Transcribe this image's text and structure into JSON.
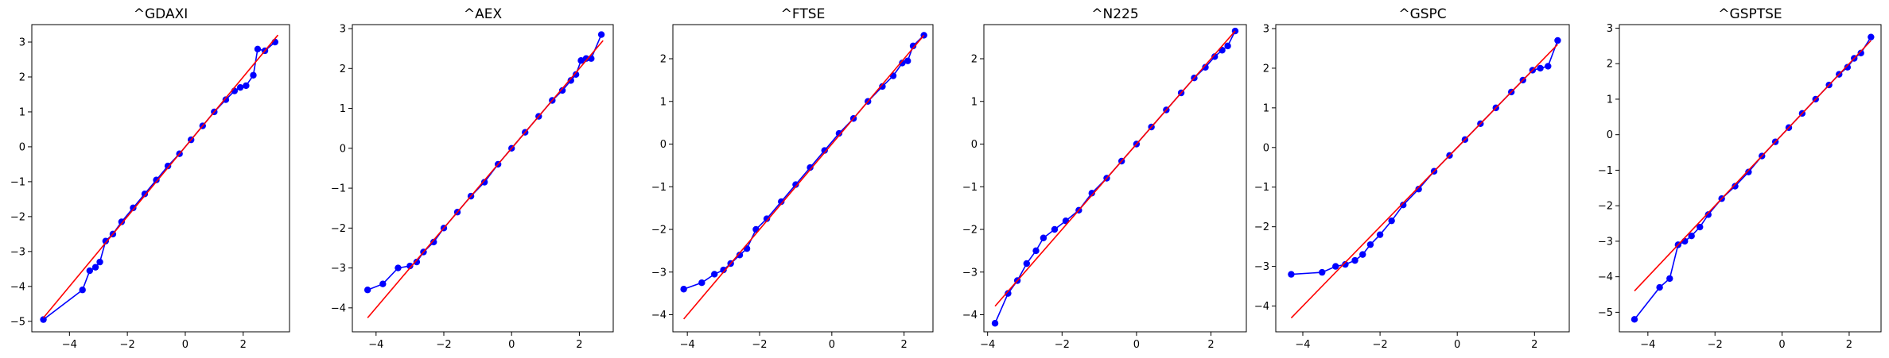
{
  "chart_data": [
    {
      "type": "line",
      "title": "^GDAXI",
      "xlim": [
        -5.3,
        3.6
      ],
      "ylim": [
        -5.3,
        3.5
      ],
      "xticks": [
        -4,
        -2,
        0,
        2
      ],
      "yticks": [
        -5,
        -4,
        -3,
        -2,
        -1,
        0,
        1,
        2,
        3
      ],
      "reference_line": {
        "x": [
          -4.9,
          3.2
        ],
        "y": [
          -4.9,
          3.2
        ],
        "color": "#ff0000"
      },
      "series": [
        {
          "color": "#0000ff",
          "marker": "o",
          "x": [
            -4.9,
            -3.55,
            -3.3,
            -3.1,
            -2.95,
            -2.75,
            -2.5,
            -2.2,
            -1.8,
            -1.4,
            -1.0,
            -0.6,
            -0.2,
            0.2,
            0.6,
            1.0,
            1.4,
            1.7,
            1.9,
            2.1,
            2.35,
            2.5,
            2.75,
            3.1
          ],
          "y": [
            -4.95,
            -4.1,
            -3.55,
            -3.45,
            -3.3,
            -2.7,
            -2.5,
            -2.15,
            -1.75,
            -1.35,
            -0.95,
            -0.55,
            -0.2,
            0.2,
            0.6,
            1.0,
            1.35,
            1.6,
            1.7,
            1.75,
            2.05,
            2.8,
            2.75,
            3.0
          ]
        }
      ]
    },
    {
      "type": "line",
      "title": "^AEX",
      "xlim": [
        -4.7,
        3.0
      ],
      "ylim": [
        -4.6,
        3.1
      ],
      "xticks": [
        -4,
        -2,
        0,
        2
      ],
      "yticks": [
        -4,
        -3,
        -2,
        -1,
        0,
        1,
        2,
        3
      ],
      "reference_line": {
        "x": [
          -4.25,
          2.7
        ],
        "y": [
          -4.25,
          2.7
        ],
        "color": "#ff0000"
      },
      "series": [
        {
          "color": "#0000ff",
          "marker": "o",
          "x": [
            -4.25,
            -3.8,
            -3.35,
            -3.0,
            -2.8,
            -2.6,
            -2.3,
            -2.0,
            -1.6,
            -1.2,
            -0.8,
            -0.4,
            0.0,
            0.4,
            0.8,
            1.2,
            1.5,
            1.75,
            1.9,
            2.05,
            2.2,
            2.35,
            2.65
          ],
          "y": [
            -3.55,
            -3.4,
            -3.0,
            -2.95,
            -2.85,
            -2.6,
            -2.35,
            -2.0,
            -1.6,
            -1.2,
            -0.85,
            -0.4,
            0.0,
            0.4,
            0.8,
            1.2,
            1.45,
            1.7,
            1.85,
            2.2,
            2.25,
            2.25,
            2.85
          ]
        }
      ]
    },
    {
      "type": "line",
      "title": "^FTSE",
      "xlim": [
        -4.4,
        2.8
      ],
      "ylim": [
        -4.4,
        2.8
      ],
      "xticks": [
        -4,
        -2,
        0,
        2
      ],
      "yticks": [
        -4,
        -3,
        -2,
        -1,
        0,
        1,
        2
      ],
      "reference_line": {
        "x": [
          -4.1,
          2.55
        ],
        "y": [
          -4.1,
          2.55
        ],
        "color": "#ff0000"
      },
      "series": [
        {
          "color": "#0000ff",
          "marker": "o",
          "x": [
            -4.1,
            -3.6,
            -3.25,
            -3.0,
            -2.8,
            -2.55,
            -2.35,
            -2.1,
            -1.8,
            -1.4,
            -1.0,
            -0.6,
            -0.2,
            0.2,
            0.6,
            1.0,
            1.4,
            1.7,
            1.95,
            2.1,
            2.25,
            2.55
          ],
          "y": [
            -3.4,
            -3.25,
            -3.05,
            -2.95,
            -2.8,
            -2.6,
            -2.45,
            -2.0,
            -1.75,
            -1.35,
            -0.95,
            -0.55,
            -0.15,
            0.25,
            0.6,
            1.0,
            1.35,
            1.6,
            1.9,
            1.95,
            2.3,
            2.55
          ]
        }
      ]
    },
    {
      "type": "line",
      "title": "^N225",
      "xlim": [
        -4.1,
        2.95
      ],
      "ylim": [
        -4.4,
        2.8
      ],
      "xticks": [
        -4,
        -2,
        0,
        2
      ],
      "yticks": [
        -4,
        -3,
        -2,
        -1,
        0,
        1,
        2
      ],
      "reference_line": {
        "x": [
          -3.8,
          2.65
        ],
        "y": [
          -3.8,
          2.65
        ],
        "color": "#ff0000"
      },
      "series": [
        {
          "color": "#0000ff",
          "marker": "o",
          "x": [
            -3.8,
            -3.45,
            -3.2,
            -2.95,
            -2.7,
            -2.5,
            -2.2,
            -1.9,
            -1.55,
            -1.2,
            -0.8,
            -0.4,
            0.0,
            0.4,
            0.8,
            1.2,
            1.55,
            1.85,
            2.1,
            2.3,
            2.45,
            2.65
          ],
          "y": [
            -4.2,
            -3.5,
            -3.2,
            -2.8,
            -2.5,
            -2.2,
            -2.0,
            -1.8,
            -1.55,
            -1.15,
            -0.8,
            -0.4,
            0.0,
            0.4,
            0.8,
            1.2,
            1.55,
            1.8,
            2.05,
            2.2,
            2.3,
            2.65
          ]
        }
      ]
    },
    {
      "type": "line",
      "title": "^GSPC",
      "xlim": [
        -4.7,
        2.9
      ],
      "ylim": [
        -4.65,
        3.1
      ],
      "xticks": [
        -4,
        -2,
        0,
        2
      ],
      "yticks": [
        -4,
        -3,
        -2,
        -1,
        0,
        1,
        2,
        3
      ],
      "reference_line": {
        "x": [
          -4.3,
          2.6
        ],
        "y": [
          -4.3,
          2.6
        ],
        "color": "#ff0000"
      },
      "series": [
        {
          "color": "#0000ff",
          "marker": "o",
          "x": [
            -4.3,
            -3.5,
            -3.15,
            -2.9,
            -2.65,
            -2.45,
            -2.25,
            -2.0,
            -1.7,
            -1.4,
            -1.0,
            -0.6,
            -0.2,
            0.2,
            0.6,
            1.0,
            1.4,
            1.7,
            1.95,
            2.15,
            2.35,
            2.6
          ],
          "y": [
            -3.2,
            -3.15,
            -3.0,
            -2.95,
            -2.85,
            -2.7,
            -2.45,
            -2.2,
            -1.85,
            -1.45,
            -1.05,
            -0.6,
            -0.2,
            0.2,
            0.6,
            1.0,
            1.4,
            1.7,
            1.95,
            2.0,
            2.05,
            2.7
          ]
        }
      ]
    },
    {
      "type": "line",
      "title": "^GSPTSE",
      "xlim": [
        -4.85,
        2.95
      ],
      "ylim": [
        -5.55,
        3.1
      ],
      "xticks": [
        -4,
        -2,
        0,
        2
      ],
      "yticks": [
        -5,
        -4,
        -3,
        -2,
        -1,
        0,
        1,
        2,
        3
      ],
      "reference_line": {
        "x": [
          -4.4,
          2.65
        ],
        "y": [
          -4.4,
          2.65
        ],
        "color": "#ff0000"
      },
      "series": [
        {
          "color": "#0000ff",
          "marker": "o",
          "x": [
            -4.4,
            -3.65,
            -3.35,
            -3.1,
            -2.9,
            -2.7,
            -2.45,
            -2.2,
            -1.8,
            -1.4,
            -1.0,
            -0.6,
            -0.2,
            0.2,
            0.6,
            1.0,
            1.4,
            1.7,
            1.95,
            2.15,
            2.35,
            2.65
          ],
          "y": [
            -5.2,
            -4.3,
            -4.05,
            -3.1,
            -3.0,
            -2.85,
            -2.6,
            -2.25,
            -1.8,
            -1.45,
            -1.05,
            -0.6,
            -0.2,
            0.2,
            0.6,
            1.0,
            1.4,
            1.7,
            1.9,
            2.15,
            2.3,
            2.75
          ]
        }
      ]
    }
  ]
}
